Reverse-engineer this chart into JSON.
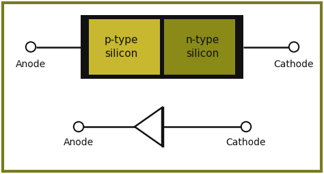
{
  "bg_color": "#ffffff",
  "border_color": "#7a7a20",
  "p_type_color": "#c8b830",
  "n_type_color": "#8a8a18",
  "black_color": "#111111",
  "wire_color": "#111111",
  "text_color": "#111111",
  "p_label": "p-type\nsilicon",
  "n_label": "n-type\nsilicon",
  "anode_label": "Anode",
  "cathode_label": "Cathode",
  "font_size": 11,
  "label_font_size": 10,
  "fig_width": 4.74,
  "fig_height": 2.54,
  "dpi": 100
}
